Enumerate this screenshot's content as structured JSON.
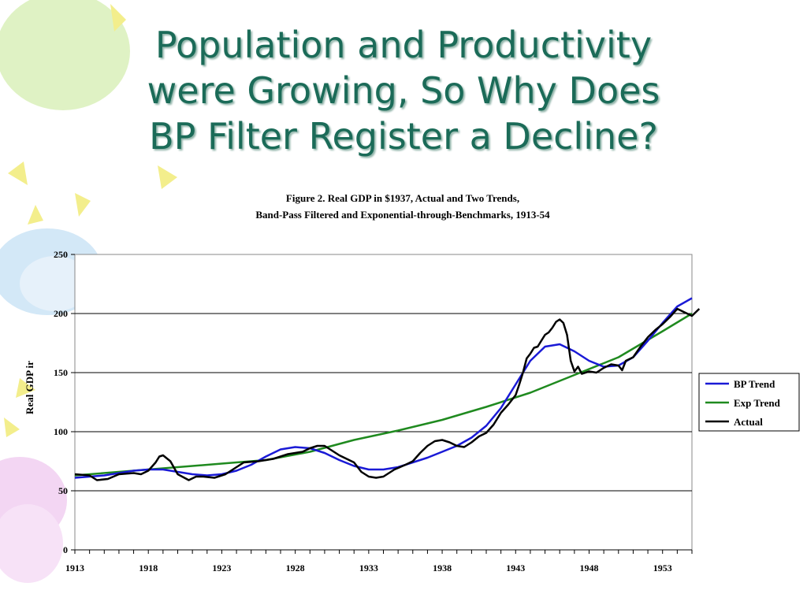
{
  "slide": {
    "title_lines": [
      "Population and Productivity",
      "were Growing, So Why Does",
      "BP Filter Register a Decline?"
    ]
  },
  "colors": {
    "title": "#1b6b58",
    "bp_trend": "#1a1ad6",
    "exp_trend": "#1f8a1f",
    "actual": "#000000",
    "decor_yellow": "#f3ee8c",
    "decor_green": "#dff2c4",
    "decor_blue": "#d3e8f7",
    "decor_pink": "#f3d6f3"
  },
  "chart_data": {
    "type": "line",
    "title": "Figure 2.   Real GDP in $1937, Actual and Two Trends,",
    "subtitle": "Band-Pass Filtered and Exponential-through-Benchmarks, 1913-54",
    "ylabel": "Real GDP ir",
    "xlabel": "",
    "xlim": [
      1913,
      1955
    ],
    "ylim": [
      0,
      250
    ],
    "yticks": [
      0,
      50,
      100,
      150,
      200,
      250
    ],
    "xtick_labels": [
      "1913",
      "1918",
      "1923",
      "1928",
      "1933",
      "1938",
      "1943",
      "1948",
      "1953"
    ],
    "grid": "horizontal",
    "legend_position": "right",
    "series": [
      {
        "name": "BP Trend",
        "color": "#1a1ad6",
        "points": [
          [
            1913,
            61
          ],
          [
            1915,
            63
          ],
          [
            1917,
            67
          ],
          [
            1918,
            68
          ],
          [
            1919,
            68
          ],
          [
            1920,
            66
          ],
          [
            1921,
            64
          ],
          [
            1922,
            63
          ],
          [
            1923,
            64
          ],
          [
            1924,
            67
          ],
          [
            1925,
            72
          ],
          [
            1926,
            79
          ],
          [
            1927,
            85
          ],
          [
            1928,
            87
          ],
          [
            1929,
            86
          ],
          [
            1930,
            82
          ],
          [
            1931,
            76
          ],
          [
            1932,
            71
          ],
          [
            1933,
            68
          ],
          [
            1934,
            68
          ],
          [
            1935,
            70
          ],
          [
            1936,
            74
          ],
          [
            1937,
            78
          ],
          [
            1938,
            83
          ],
          [
            1939,
            88
          ],
          [
            1940,
            95
          ],
          [
            1941,
            105
          ],
          [
            1942,
            120
          ],
          [
            1943,
            140
          ],
          [
            1944,
            160
          ],
          [
            1945,
            172
          ],
          [
            1946,
            174
          ],
          [
            1947,
            168
          ],
          [
            1948,
            160
          ],
          [
            1949,
            155
          ],
          [
            1950,
            156
          ],
          [
            1951,
            163
          ],
          [
            1952,
            177
          ],
          [
            1953,
            192
          ],
          [
            1954,
            206
          ],
          [
            1955,
            213
          ]
        ]
      },
      {
        "name": "Exp Trend",
        "color": "#1f8a1f",
        "points": [
          [
            1913,
            63
          ],
          [
            1918,
            68
          ],
          [
            1923,
            73
          ],
          [
            1926,
            76
          ],
          [
            1929,
            83
          ],
          [
            1932,
            93
          ],
          [
            1935,
            101
          ],
          [
            1938,
            110
          ],
          [
            1941,
            121
          ],
          [
            1944,
            133
          ],
          [
            1947,
            148
          ],
          [
            1950,
            163
          ],
          [
            1953,
            185
          ],
          [
            1955,
            200
          ]
        ]
      },
      {
        "name": "Actual",
        "color": "#000000",
        "points": [
          [
            1913,
            64
          ],
          [
            1914,
            63
          ],
          [
            1914.5,
            59
          ],
          [
            1915.25,
            60
          ],
          [
            1916,
            64
          ],
          [
            1917,
            65
          ],
          [
            1917.5,
            64
          ],
          [
            1918,
            67
          ],
          [
            1918.5,
            74
          ],
          [
            1918.75,
            79
          ],
          [
            1919,
            80
          ],
          [
            1919.5,
            75
          ],
          [
            1920,
            64
          ],
          [
            1920.75,
            59
          ],
          [
            1921.25,
            62
          ],
          [
            1921.75,
            62
          ],
          [
            1922.5,
            61
          ],
          [
            1923.25,
            64
          ],
          [
            1924,
            70
          ],
          [
            1924.5,
            74
          ],
          [
            1925.5,
            75
          ],
          [
            1926.5,
            77
          ],
          [
            1927.5,
            81
          ],
          [
            1928.5,
            83
          ],
          [
            1929,
            86
          ],
          [
            1929.5,
            88
          ],
          [
            1930,
            88
          ],
          [
            1930.5,
            84
          ],
          [
            1931,
            80
          ],
          [
            1931.5,
            77
          ],
          [
            1932,
            74
          ],
          [
            1932.5,
            66
          ],
          [
            1933,
            62
          ],
          [
            1933.5,
            61
          ],
          [
            1934,
            62
          ],
          [
            1934.75,
            68
          ],
          [
            1935.5,
            72
          ],
          [
            1936,
            75
          ],
          [
            1936.5,
            82
          ],
          [
            1937,
            88
          ],
          [
            1937.5,
            92
          ],
          [
            1938,
            93
          ],
          [
            1938.5,
            91
          ],
          [
            1939,
            88
          ],
          [
            1939.5,
            87
          ],
          [
            1940,
            91
          ],
          [
            1940.5,
            96
          ],
          [
            1941,
            99
          ],
          [
            1941.5,
            106
          ],
          [
            1942,
            116
          ],
          [
            1942.5,
            123
          ],
          [
            1943,
            131
          ],
          [
            1943.25,
            140
          ],
          [
            1943.5,
            150
          ],
          [
            1943.75,
            162
          ],
          [
            1944,
            166
          ],
          [
            1944.25,
            171
          ],
          [
            1944.5,
            172
          ],
          [
            1944.75,
            177
          ],
          [
            1945,
            182
          ],
          [
            1945.25,
            184
          ],
          [
            1945.5,
            188
          ],
          [
            1945.75,
            193
          ],
          [
            1946,
            195
          ],
          [
            1946.25,
            192
          ],
          [
            1946.5,
            182
          ],
          [
            1946.75,
            160
          ],
          [
            1947,
            151
          ],
          [
            1947.25,
            155
          ],
          [
            1947.5,
            149
          ],
          [
            1948,
            151
          ],
          [
            1948.5,
            150
          ],
          [
            1949,
            154
          ],
          [
            1949.5,
            157
          ],
          [
            1950,
            156
          ],
          [
            1950.25,
            152
          ],
          [
            1950.5,
            160
          ],
          [
            1951,
            163
          ],
          [
            1951.5,
            172
          ],
          [
            1952,
            180
          ],
          [
            1952.5,
            186
          ],
          [
            1953,
            191
          ],
          [
            1953.5,
            197
          ],
          [
            1954,
            204
          ],
          [
            1954.5,
            201
          ],
          [
            1955,
            198
          ],
          [
            1955.5,
            204
          ]
        ]
      }
    ]
  }
}
